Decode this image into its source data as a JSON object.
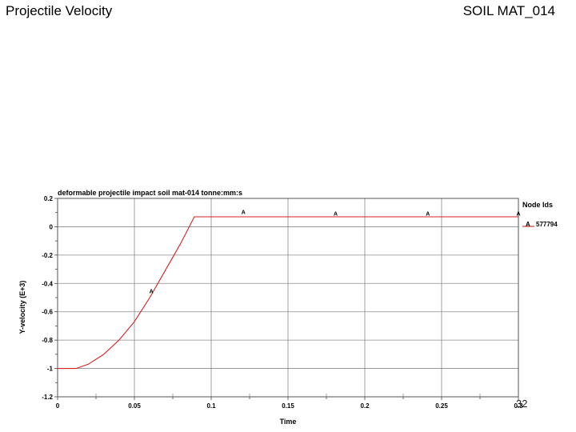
{
  "slide": {
    "title": "Projectile Velocity",
    "subtitle": "SOIL MAT_014",
    "page_number": "32"
  },
  "chart_data": {
    "type": "line",
    "title": "deformable projectile impact soil mat-014 tonne:mm:s",
    "xlabel": "Time",
    "ylabel": "Y-velocity (E+3)",
    "xlim": [
      0,
      0.3
    ],
    "ylim": [
      -1.2,
      0.2
    ],
    "x_ticks": [
      "0",
      "0.05",
      "0.1",
      "0.15",
      "0.2",
      "0.25",
      "0.3"
    ],
    "y_ticks": [
      "0.2",
      "0",
      "-0.2",
      "-0.4",
      "-0.6",
      "-0.8",
      "-1",
      "-1.2"
    ],
    "grid": true,
    "line_color": "#d62020",
    "legend": {
      "title": "Node Ids",
      "position": "right",
      "entries": [
        {
          "marker": "A",
          "label": "A",
          "id": "577794"
        }
      ]
    },
    "series": [
      {
        "marker": "A",
        "x": [
          0.0,
          0.012,
          0.02,
          0.03,
          0.04,
          0.05,
          0.06,
          0.07,
          0.08,
          0.089,
          0.1,
          0.15,
          0.2,
          0.25,
          0.3
        ],
        "y": [
          -1.0,
          -1.0,
          -0.97,
          -0.9,
          -0.8,
          -0.67,
          -0.5,
          -0.31,
          -0.12,
          0.07,
          0.07,
          0.07,
          0.07,
          0.07,
          0.07
        ]
      }
    ],
    "marker_points": [
      {
        "x": 0.061,
        "y": -0.47,
        "label": "A"
      },
      {
        "x": 0.121,
        "y": 0.09,
        "label": "A"
      },
      {
        "x": 0.181,
        "y": 0.08,
        "label": "A"
      },
      {
        "x": 0.241,
        "y": 0.08,
        "label": "A"
      },
      {
        "x": 0.3,
        "y": 0.08,
        "label": "A"
      }
    ]
  }
}
